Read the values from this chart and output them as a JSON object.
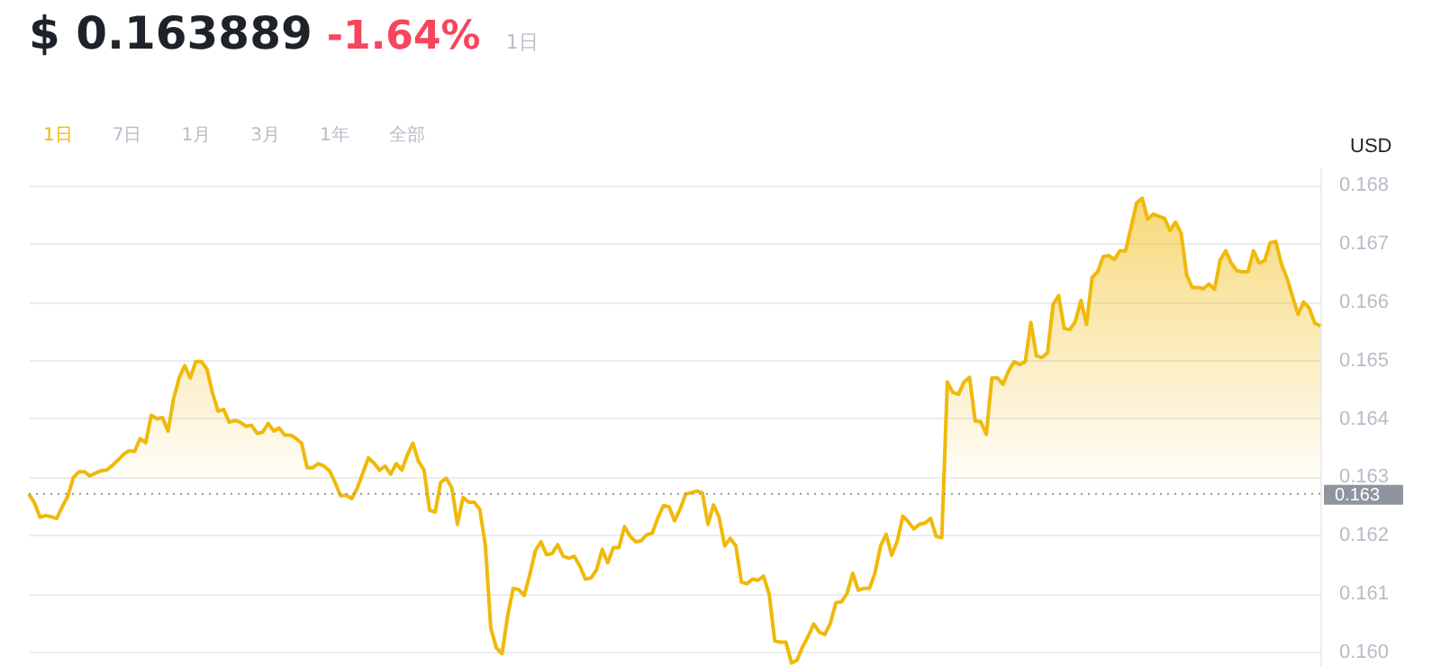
{
  "chart_data": {
    "type": "area",
    "title": "$ 0.163889",
    "subtitle": "-1.64%",
    "ylabel": "USD",
    "annotations": [
      "1日",
      "1日",
      "7日",
      "1月",
      "3月",
      "1年",
      "全部"
    ],
    "color": "#f0b90b",
    "grid": "y",
    "tick_labels": "y",
    "ylim": [
      0.15975,
      0.1683
    ],
    "yticks": [
      {
        "value": 0.16,
        "label": "0.160"
      },
      0.161,
      0.162,
      0.163,
      0.164,
      0.165,
      0.166,
      0.167,
      0.168
    ],
    "ref_lines": [
      {
        "axis": "y",
        "value": 0.1627,
        "label": "0.163",
        "color": "#8f959e",
        "line_style": "dotted"
      }
    ],
    "categories": [
      null,
      null,
      null,
      null,
      null,
      null,
      null,
      null,
      null,
      null,
      null,
      null,
      null,
      null,
      null,
      null,
      null,
      null,
      null,
      null,
      null,
      null,
      null,
      null,
      null,
      null,
      null,
      null,
      null,
      null,
      null,
      null,
      null,
      null,
      null,
      null,
      null,
      null,
      null,
      null,
      null,
      null,
      null,
      null,
      null,
      null,
      null,
      null,
      null,
      null,
      null,
      null,
      null,
      null,
      null,
      null,
      null,
      null,
      null,
      null,
      null,
      null,
      null,
      null,
      null,
      null,
      null,
      null,
      null,
      null,
      null,
      null,
      null,
      null,
      null,
      null,
      null,
      null,
      null,
      null,
      null,
      null,
      null,
      null,
      null,
      null,
      null,
      null,
      null,
      null,
      null,
      null,
      null,
      null,
      null,
      null,
      null,
      null,
      null,
      null,
      null,
      null,
      null,
      null,
      null,
      null,
      null,
      null,
      null,
      null,
      null,
      null,
      null,
      null,
      null,
      null,
      null,
      null,
      null,
      null,
      null,
      null,
      null,
      null,
      null,
      null,
      null,
      null,
      null,
      null,
      null,
      null,
      null,
      null,
      null,
      null,
      null,
      null,
      null,
      null,
      null,
      null,
      null,
      null,
      null,
      null,
      null,
      null,
      null,
      null,
      null,
      null,
      null,
      null,
      null,
      null,
      null,
      null,
      null,
      null,
      null,
      null,
      null,
      null,
      null,
      null,
      null,
      null,
      null,
      null,
      null,
      null,
      null,
      null,
      null,
      null,
      null,
      null,
      null,
      null,
      null,
      null,
      null,
      null,
      null,
      null,
      null,
      null,
      null,
      null,
      null,
      null,
      null,
      null,
      null,
      null,
      null,
      null,
      null,
      null,
      null,
      null,
      null,
      null,
      null,
      null,
      null,
      null,
      null,
      null,
      null,
      null,
      null,
      null,
      null,
      null,
      null,
      null,
      null,
      null,
      null,
      null,
      null,
      null,
      null,
      null,
      null,
      null,
      null,
      null,
      null,
      null,
      null
    ],
    "values": [
      0.1627,
      0.16255,
      0.1623,
      0.16233,
      0.16231,
      0.16228,
      0.16248,
      0.16266,
      0.16298,
      0.16308,
      0.16308,
      0.16301,
      0.16306,
      0.1631,
      0.16311,
      0.16319,
      0.16328,
      0.16338,
      0.16344,
      0.16343,
      0.16365,
      0.16358,
      0.16405,
      0.16399,
      0.16401,
      0.16378,
      0.16433,
      0.16469,
      0.1649,
      0.16469,
      0.16497,
      0.16497,
      0.16484,
      0.16443,
      0.16412,
      0.16415,
      0.16393,
      0.16396,
      0.16393,
      0.16386,
      0.16388,
      0.16374,
      0.16376,
      0.16391,
      0.16378,
      0.16383,
      0.16371,
      0.16371,
      0.16365,
      0.16357,
      0.16315,
      0.16315,
      0.16322,
      0.16318,
      0.1631,
      0.1629,
      0.16267,
      0.16268,
      0.16262,
      0.1628,
      0.16306,
      0.16332,
      0.16323,
      0.16311,
      0.16318,
      0.16304,
      0.16322,
      0.16311,
      0.16337,
      0.16357,
      0.16326,
      0.16311,
      0.16242,
      0.16239,
      0.1629,
      0.16297,
      0.1628,
      0.16218,
      0.16264,
      0.16256,
      0.16256,
      0.16244,
      0.16183,
      0.16039,
      0.16006,
      0.15996,
      0.1606,
      0.16108,
      0.16106,
      0.16096,
      0.16132,
      0.16173,
      0.16188,
      0.16166,
      0.16168,
      0.16183,
      0.16163,
      0.1616,
      0.16163,
      0.16146,
      0.16124,
      0.16126,
      0.1614,
      0.16175,
      0.16152,
      0.16178,
      0.16178,
      0.16214,
      0.16198,
      0.16188,
      0.1619,
      0.162,
      0.16203,
      0.16229,
      0.1625,
      0.16248,
      0.16224,
      0.16244,
      0.1627,
      0.16272,
      0.16275,
      0.16272,
      0.16218,
      0.16251,
      0.1623,
      0.16181,
      0.16194,
      0.16181,
      0.16119,
      0.16116,
      0.16124,
      0.16122,
      0.16129,
      0.16098,
      0.16018,
      0.16016,
      0.16016,
      0.1598,
      0.15985,
      0.16008,
      0.16026,
      0.16047,
      0.16033,
      0.16029,
      0.16049,
      0.16084,
      0.16085,
      0.161,
      0.16134,
      0.16105,
      0.16108,
      0.16108,
      0.16134,
      0.16181,
      0.16201,
      0.16165,
      0.16189,
      0.16232,
      0.16222,
      0.1621,
      0.16218,
      0.1622,
      0.16228,
      0.16197,
      0.16195,
      0.16462,
      0.16444,
      0.16441,
      0.16462,
      0.1647,
      0.16395,
      0.16394,
      0.16372,
      0.16469,
      0.16469,
      0.16458,
      0.16481,
      0.16497,
      0.16492,
      0.16497,
      0.16564,
      0.16507,
      0.16504,
      0.16512,
      0.16595,
      0.1661,
      0.16554,
      0.16552,
      0.16566,
      0.16602,
      0.16561,
      0.16641,
      0.16651,
      0.16677,
      0.16679,
      0.16672,
      0.16687,
      0.16687,
      0.16727,
      0.16769,
      0.16777,
      0.16741,
      0.1675,
      0.16746,
      0.16743,
      0.16722,
      0.16736,
      0.16717,
      0.16645,
      0.16624,
      0.16624,
      0.16622,
      0.1663,
      0.16621,
      0.16671,
      0.16687,
      0.16666,
      0.16653,
      0.16651,
      0.16651,
      0.16687,
      0.16666,
      0.1667,
      0.16701,
      0.16703,
      0.16665,
      0.1664,
      0.16609,
      0.16578,
      0.16599,
      0.16589,
      0.16563,
      0.16558
    ]
  }
}
